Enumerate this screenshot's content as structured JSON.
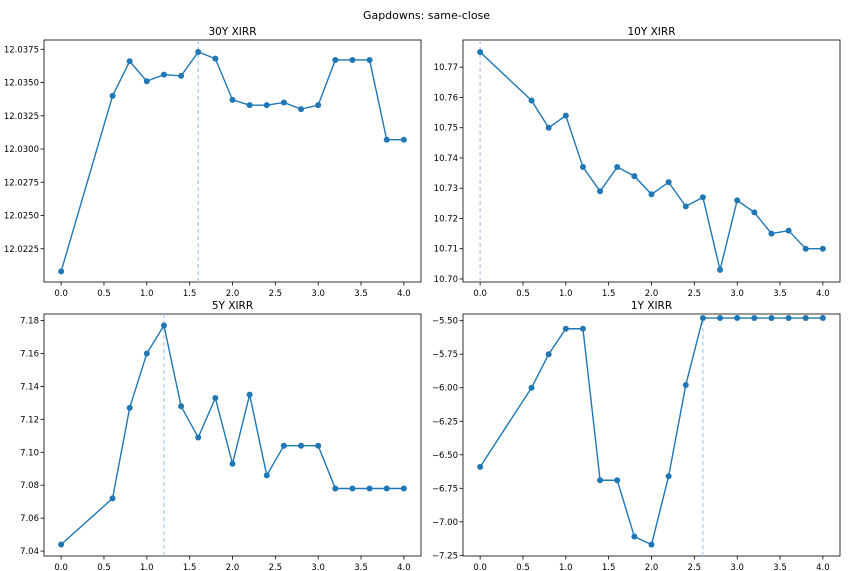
{
  "figure": {
    "title": "Gapdowns: same-close"
  },
  "chart_data": [
    {
      "type": "line",
      "title": "30Y XIRR",
      "x": [
        0.0,
        0.6,
        0.8,
        1.0,
        1.2,
        1.4,
        1.6,
        1.8,
        2.0,
        2.2,
        2.4,
        2.6,
        2.8,
        3.0,
        3.2,
        3.4,
        3.6,
        3.8,
        4.0
      ],
      "y": [
        12.0208,
        12.034,
        12.0366,
        12.0351,
        12.0356,
        12.0355,
        12.0373,
        12.0368,
        12.0337,
        12.0333,
        12.0333,
        12.0335,
        12.033,
        12.0333,
        12.0367,
        12.0367,
        12.0367,
        12.0307,
        12.0307
      ],
      "xlim": [
        -0.2,
        4.2
      ],
      "ylim": [
        12.02,
        12.0382
      ],
      "xticks": [
        "0.0",
        "0.5",
        "1.0",
        "1.5",
        "2.0",
        "2.5",
        "3.0",
        "3.5",
        "4.0"
      ],
      "yticks": [
        "12.0225",
        "12.0250",
        "12.0275",
        "12.0300",
        "12.0325",
        "12.0350",
        "12.0375"
      ],
      "vline": 1.6,
      "color": "#1f77b4",
      "vline_color": "#a9c9e8"
    },
    {
      "type": "line",
      "title": "10Y XIRR",
      "x": [
        0.0,
        0.6,
        0.8,
        1.0,
        1.2,
        1.4,
        1.6,
        1.8,
        2.0,
        2.2,
        2.4,
        2.6,
        2.8,
        3.0,
        3.2,
        3.4,
        3.6,
        3.8,
        4.0
      ],
      "y": [
        10.775,
        10.759,
        10.75,
        10.754,
        10.737,
        10.729,
        10.737,
        10.734,
        10.728,
        10.732,
        10.724,
        10.727,
        10.703,
        10.726,
        10.722,
        10.715,
        10.716,
        10.71,
        10.71
      ],
      "xlim": [
        -0.2,
        4.2
      ],
      "ylim": [
        10.699,
        10.779
      ],
      "xticks": [
        "0.0",
        "0.5",
        "1.0",
        "1.5",
        "2.0",
        "2.5",
        "3.0",
        "3.5",
        "4.0"
      ],
      "yticks": [
        "10.70",
        "10.71",
        "10.72",
        "10.73",
        "10.74",
        "10.75",
        "10.76",
        "10.77"
      ],
      "vline": 0.0,
      "color": "#1f77b4",
      "vline_color": "#a9c9e8"
    },
    {
      "type": "line",
      "title": "5Y XIRR",
      "x": [
        0.0,
        0.6,
        0.8,
        1.0,
        1.2,
        1.4,
        1.6,
        1.8,
        2.0,
        2.2,
        2.4,
        2.6,
        2.8,
        3.0,
        3.2,
        3.4,
        3.6,
        3.8,
        4.0
      ],
      "y": [
        7.044,
        7.072,
        7.127,
        7.16,
        7.177,
        7.128,
        7.109,
        7.133,
        7.093,
        7.135,
        7.086,
        7.104,
        7.104,
        7.104,
        7.078,
        7.078,
        7.078,
        7.078,
        7.078
      ],
      "xlim": [
        -0.2,
        4.2
      ],
      "ylim": [
        7.037,
        7.184
      ],
      "xticks": [
        "0.0",
        "0.5",
        "1.0",
        "1.5",
        "2.0",
        "2.5",
        "3.0",
        "3.5",
        "4.0"
      ],
      "yticks": [
        "7.04",
        "7.06",
        "7.08",
        "7.10",
        "7.12",
        "7.14",
        "7.16",
        "7.18"
      ],
      "vline": 1.2,
      "color": "#1f77b4",
      "vline_color": "#a9c9e8"
    },
    {
      "type": "line",
      "title": "1Y XIRR",
      "x": [
        0.0,
        0.6,
        0.8,
        1.0,
        1.2,
        1.4,
        1.6,
        1.8,
        2.0,
        2.2,
        2.4,
        2.6,
        2.8,
        3.0,
        3.2,
        3.4,
        3.6,
        3.8,
        4.0
      ],
      "y": [
        -6.59,
        -6.0,
        -5.75,
        -5.56,
        -5.56,
        -6.69,
        -6.69,
        -7.11,
        -7.17,
        -6.66,
        -5.98,
        -5.48,
        -5.48,
        -5.48,
        -5.48,
        -5.48,
        -5.48,
        -5.48,
        -5.48
      ],
      "xlim": [
        -0.2,
        4.2
      ],
      "ylim": [
        -7.255,
        -5.45
      ],
      "xticks": [
        "0.0",
        "0.5",
        "1.0",
        "1.5",
        "2.0",
        "2.5",
        "3.0",
        "3.5",
        "4.0"
      ],
      "yticks": [
        "−7.25",
        "−7.00",
        "−6.75",
        "−6.50",
        "−6.25",
        "−6.00",
        "−5.75",
        "−5.50"
      ],
      "vline": 2.6,
      "color": "#1f77b4",
      "vline_color": "#a9c9e8"
    }
  ]
}
